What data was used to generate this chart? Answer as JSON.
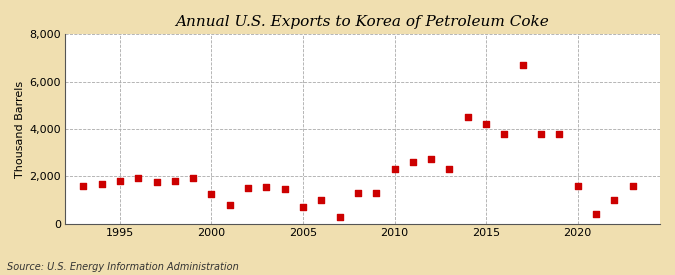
{
  "title": "Annual U.S. Exports to Korea of Petroleum Coke",
  "ylabel": "Thousand Barrels",
  "source": "Source: U.S. Energy Information Administration",
  "outer_bg": "#f0dfb0",
  "plot_bg": "#ffffff",
  "marker_color": "#cc0000",
  "marker_size": 18,
  "years": [
    1993,
    1994,
    1995,
    1996,
    1997,
    1998,
    1999,
    2000,
    2001,
    2002,
    2003,
    2004,
    2005,
    2006,
    2007,
    2008,
    2009,
    2010,
    2011,
    2012,
    2013,
    2014,
    2015,
    2016,
    2017,
    2018,
    2019,
    2020,
    2021,
    2022,
    2023
  ],
  "values": [
    1600,
    1700,
    1800,
    1950,
    1750,
    1800,
    1950,
    1250,
    800,
    1500,
    1550,
    1450,
    700,
    1000,
    300,
    1300,
    1300,
    2300,
    2600,
    2750,
    2300,
    4500,
    4200,
    3800,
    6700,
    3800,
    3800,
    1600,
    400,
    1000,
    1600
  ],
  "xlim": [
    1992,
    2024.5
  ],
  "ylim": [
    0,
    8000
  ],
  "yticks": [
    0,
    2000,
    4000,
    6000,
    8000
  ],
  "ytick_labels": [
    "0",
    "2,000",
    "4,000",
    "6,000",
    "8,000"
  ],
  "xticks": [
    1995,
    2000,
    2005,
    2010,
    2015,
    2020
  ],
  "grid_color": "#aaaaaa",
  "title_fontsize": 11,
  "label_fontsize": 8,
  "tick_fontsize": 8,
  "source_fontsize": 7
}
